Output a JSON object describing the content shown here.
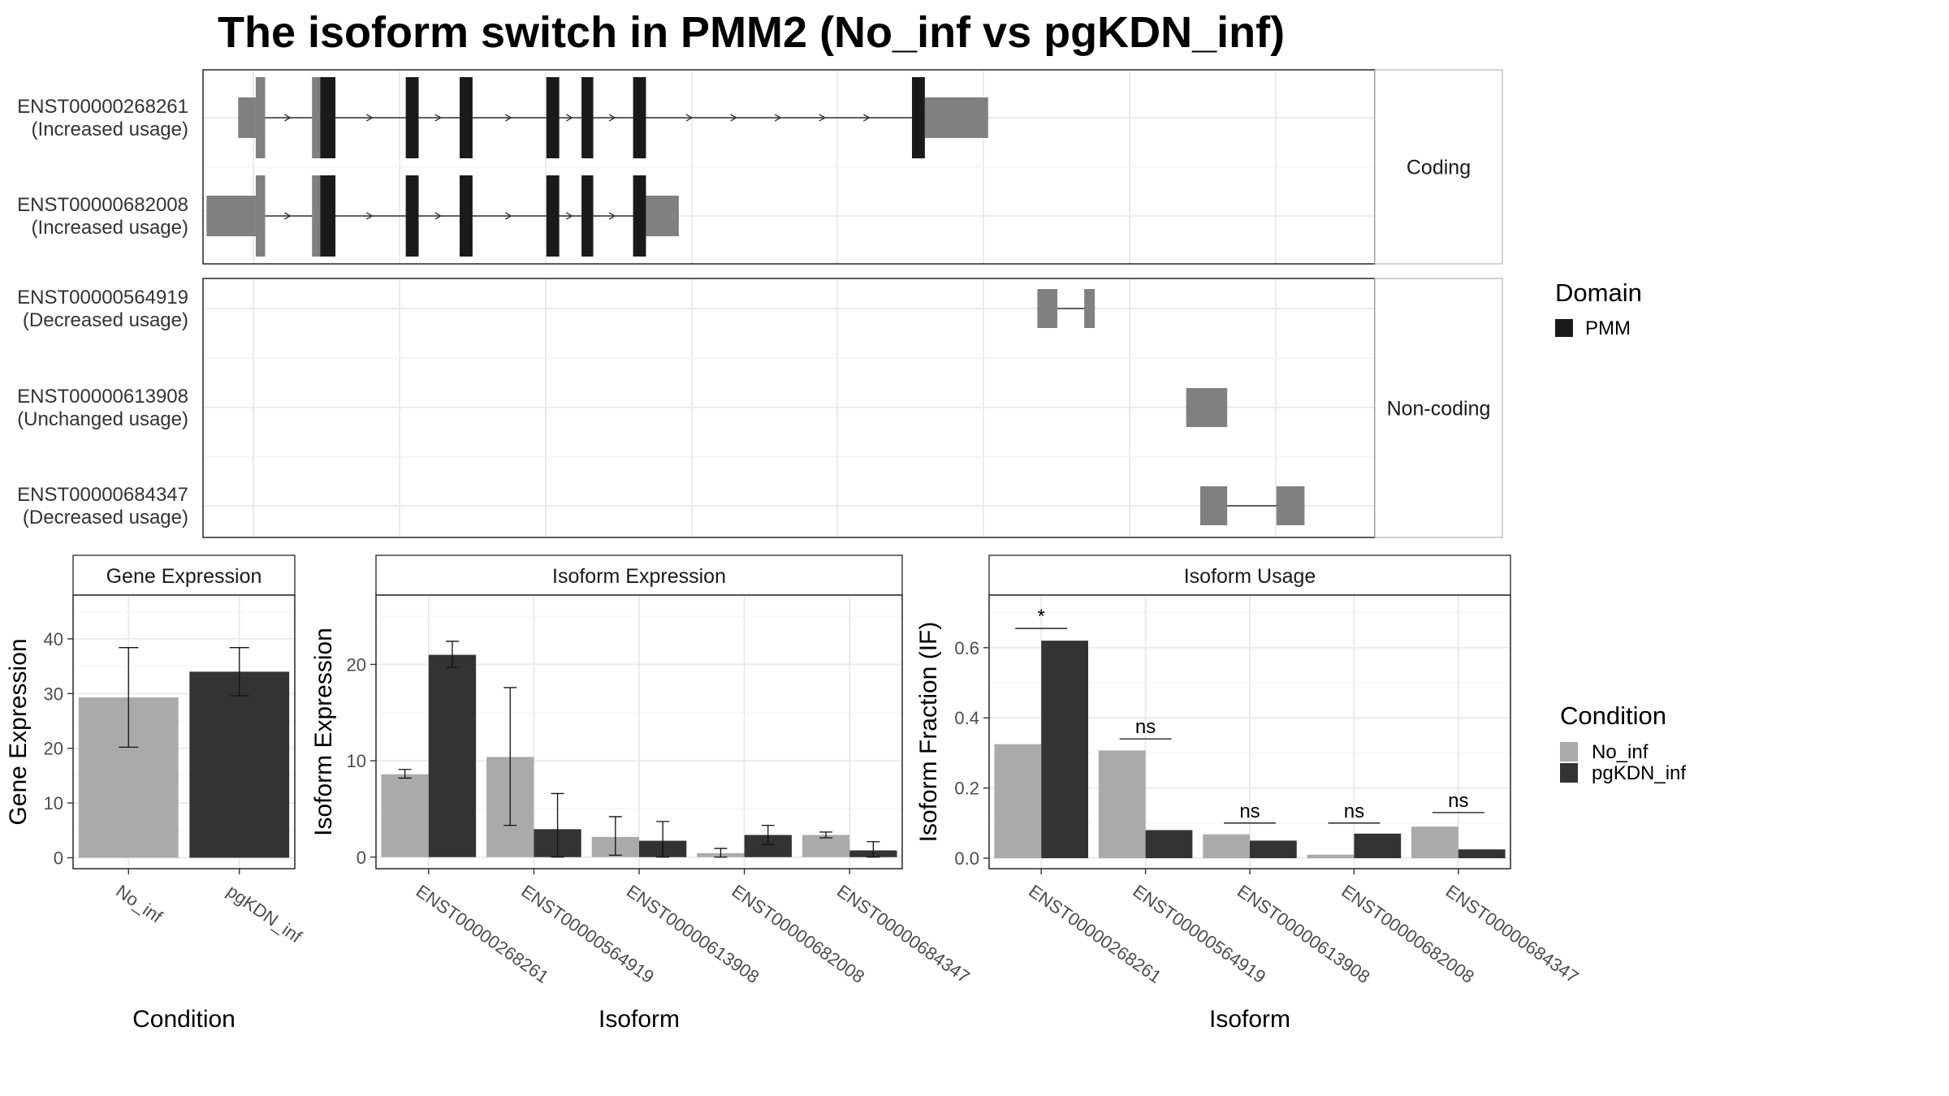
{
  "title": "The isoform switch in PMM2 (No_inf vs pgKDN_inf)",
  "colors": {
    "no_inf": "#aaaaaa",
    "pgkdn_inf": "#333333",
    "utr": "#808080",
    "domain": "#1a1a1a",
    "grid": "#ebebeb",
    "panel_border": "#333333",
    "strip_border": "#b3b3b3"
  },
  "chart_data": [
    {
      "type": "gene-structure",
      "facets": [
        "Coding",
        "Non-coding"
      ],
      "transcripts": [
        {
          "id": "ENST00000268261",
          "usage": "(Increased usage)",
          "facet": "Coding",
          "exons": [
            [
              0.03,
              0.045,
              "utr"
            ],
            [
              0.045,
              0.053,
              "utr"
            ],
            [
              0.093,
              0.1,
              "utr"
            ],
            [
              0.1,
              0.113,
              "domain"
            ],
            [
              0.173,
              0.184,
              "domain"
            ],
            [
              0.219,
              0.23,
              "domain"
            ],
            [
              0.293,
              0.304,
              "domain"
            ],
            [
              0.323,
              0.333,
              "domain"
            ],
            [
              0.367,
              0.378,
              "domain"
            ],
            [
              0.605,
              0.616,
              "domain"
            ],
            [
              0.616,
              0.67,
              "utr"
            ]
          ]
        },
        {
          "id": "ENST00000682008",
          "usage": "(Increased usage)",
          "facet": "Coding",
          "exons": [
            [
              0.003,
              0.045,
              "utr"
            ],
            [
              0.045,
              0.053,
              "utr"
            ],
            [
              0.093,
              0.1,
              "utr"
            ],
            [
              0.1,
              0.113,
              "domain"
            ],
            [
              0.173,
              0.184,
              "domain"
            ],
            [
              0.219,
              0.23,
              "domain"
            ],
            [
              0.293,
              0.304,
              "domain"
            ],
            [
              0.323,
              0.333,
              "domain"
            ],
            [
              0.367,
              0.378,
              "domain"
            ],
            [
              0.378,
              0.406,
              "utr"
            ]
          ]
        },
        {
          "id": "ENST00000564919",
          "usage": "(Decreased usage)",
          "facet": "Non-coding",
          "exons": [
            [
              0.712,
              0.729,
              "utr"
            ],
            [
              0.752,
              0.761,
              "utr"
            ]
          ]
        },
        {
          "id": "ENST00000613908",
          "usage": "(Unchanged usage)",
          "facet": "Non-coding",
          "exons": [
            [
              0.839,
              0.874,
              "utr"
            ]
          ]
        },
        {
          "id": "ENST00000684347",
          "usage": "(Decreased usage)",
          "facet": "Non-coding",
          "exons": [
            [
              0.851,
              0.874,
              "utr"
            ],
            [
              0.916,
              0.94,
              "utr"
            ]
          ]
        }
      ]
    },
    {
      "type": "bar",
      "strip": "Gene Expression",
      "xlabel": "Condition",
      "ylabel": "Gene Expression",
      "ylim": [
        -2,
        48
      ],
      "yticks": [
        0,
        10,
        20,
        30,
        40
      ],
      "categories": [
        "No_inf",
        "pgKDN_inf"
      ],
      "values": [
        29.3,
        34.0
      ],
      "errors": [
        [
          20.2,
          38.4
        ],
        [
          29.6,
          38.4
        ]
      ]
    },
    {
      "type": "bar",
      "strip": "Isoform Expression",
      "xlabel": "Isoform",
      "ylabel": "Isoform Expression",
      "ylim": [
        -1.2,
        27.2
      ],
      "yticks": [
        0,
        10,
        20
      ],
      "categories": [
        "ENST00000268261",
        "ENST00000564919",
        "ENST00000613908",
        "ENST00000682008",
        "ENST00000684347"
      ],
      "series": [
        {
          "name": "No_inf",
          "values": [
            8.6,
            10.4,
            2.1,
            0.4,
            2.3
          ],
          "errors": [
            [
              8.2,
              9.1
            ],
            [
              3.3,
              17.6
            ],
            [
              0.2,
              4.2
            ],
            [
              0.0,
              0.9
            ],
            [
              2.0,
              2.6
            ]
          ]
        },
        {
          "name": "pgKDN_inf",
          "values": [
            21.0,
            2.9,
            1.7,
            2.3,
            0.7
          ],
          "errors": [
            [
              19.7,
              22.4
            ],
            [
              0.0,
              6.6
            ],
            [
              0.0,
              3.7
            ],
            [
              1.3,
              3.3
            ],
            [
              0.0,
              1.6
            ]
          ]
        }
      ]
    },
    {
      "type": "bar",
      "strip": "Isoform Usage",
      "xlabel": "Isoform",
      "ylabel": "Isoform Fraction (IF)",
      "ylim": [
        -0.03,
        0.75
      ],
      "yticks": [
        "0.0",
        "0.2",
        "0.4",
        "0.6"
      ],
      "categories": [
        "ENST00000268261",
        "ENST00000564919",
        "ENST00000613908",
        "ENST00000682008",
        "ENST00000684347"
      ],
      "series": [
        {
          "name": "No_inf",
          "values": [
            0.325,
            0.307,
            0.068,
            0.01,
            0.09
          ]
        },
        {
          "name": "pgKDN_inf",
          "values": [
            0.62,
            0.08,
            0.05,
            0.07,
            0.025
          ]
        }
      ],
      "significance": [
        {
          "label": "*",
          "y": 0.655
        },
        {
          "label": "ns",
          "y": 0.34
        },
        {
          "label": "ns",
          "y": 0.1
        },
        {
          "label": "ns",
          "y": 0.1
        },
        {
          "label": "ns",
          "y": 0.13
        }
      ]
    }
  ],
  "legends": {
    "domain": {
      "title": "Domain",
      "items": [
        {
          "label": "PMM",
          "color": "#1a1a1a"
        }
      ]
    },
    "condition": {
      "title": "Condition",
      "items": [
        {
          "label": "No_inf",
          "color": "#aaaaaa"
        },
        {
          "label": "pgKDN_inf",
          "color": "#333333"
        }
      ]
    }
  }
}
